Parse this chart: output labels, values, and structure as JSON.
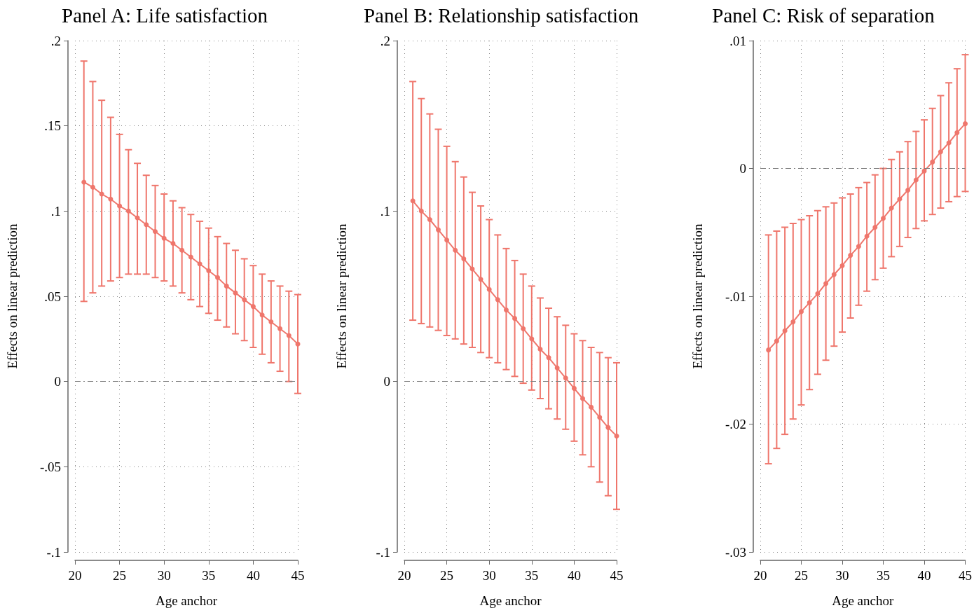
{
  "chart_data": [
    {
      "type": "line",
      "title": "Panel A: Life satisfaction",
      "xlabel": "Age anchor",
      "ylabel": "Effects on linear prediction",
      "x": [
        21,
        22,
        23,
        24,
        25,
        26,
        27,
        28,
        29,
        30,
        31,
        32,
        33,
        34,
        35,
        36,
        37,
        38,
        39,
        40,
        41,
        42,
        43,
        44,
        45
      ],
      "series": [
        {
          "color": "#ef766c",
          "values": [
            0.117,
            0.114,
            0.11,
            0.107,
            0.103,
            0.1,
            0.096,
            0.092,
            0.088,
            0.084,
            0.081,
            0.077,
            0.073,
            0.069,
            0.065,
            0.061,
            0.056,
            0.052,
            0.048,
            0.044,
            0.039,
            0.035,
            0.031,
            0.027,
            0.022
          ],
          "errors": [
            [
              0.047,
              0.188
            ],
            [
              0.052,
              0.176
            ],
            [
              0.056,
              0.165
            ],
            [
              0.059,
              0.155
            ],
            [
              0.061,
              0.145
            ],
            [
              0.063,
              0.136
            ],
            [
              0.063,
              0.128
            ],
            [
              0.063,
              0.121
            ],
            [
              0.061,
              0.115
            ],
            [
              0.059,
              0.11
            ],
            [
              0.056,
              0.106
            ],
            [
              0.052,
              0.102
            ],
            [
              0.048,
              0.098
            ],
            [
              0.044,
              0.094
            ],
            [
              0.04,
              0.09
            ],
            [
              0.036,
              0.085
            ],
            [
              0.032,
              0.081
            ],
            [
              0.028,
              0.077
            ],
            [
              0.024,
              0.072
            ],
            [
              0.02,
              0.068
            ],
            [
              0.016,
              0.063
            ],
            [
              0.011,
              0.059
            ],
            [
              0.006,
              0.056
            ],
            [
              0.0,
              0.053
            ],
            [
              -0.007,
              0.051
            ]
          ]
        }
      ],
      "xlim": [
        20,
        45
      ],
      "xticks": [
        20,
        25,
        30,
        35,
        40,
        45
      ],
      "ylim": [
        -0.1,
        0.2
      ],
      "yticks": [
        {
          "value": -0.1,
          "label": "-.1"
        },
        {
          "value": -0.05,
          "label": "-.05"
        },
        {
          "value": 0,
          "label": "0"
        },
        {
          "value": 0.05,
          "label": ".05"
        },
        {
          "value": 0.1,
          "label": ".1"
        },
        {
          "value": 0.15,
          "label": ".15"
        },
        {
          "value": 0.2,
          "label": ".2"
        }
      ],
      "ref_lines": [
        {
          "axis": "y",
          "value": 0,
          "color": "#808080",
          "line_style": "dashed"
        }
      ],
      "grid": true,
      "marker": "circle",
      "line_style": "solid"
    },
    {
      "type": "line",
      "title": "Panel B: Relationship satisfaction",
      "xlabel": "Age anchor",
      "ylabel": "Effects on linear prediction",
      "x": [
        21,
        22,
        23,
        24,
        25,
        26,
        27,
        28,
        29,
        30,
        31,
        32,
        33,
        34,
        35,
        36,
        37,
        38,
        39,
        40,
        41,
        42,
        43,
        44,
        45
      ],
      "series": [
        {
          "color": "#ef766c",
          "values": [
            0.106,
            0.1,
            0.095,
            0.089,
            0.083,
            0.077,
            0.072,
            0.066,
            0.06,
            0.054,
            0.048,
            0.042,
            0.037,
            0.031,
            0.025,
            0.019,
            0.014,
            0.008,
            0.002,
            -0.004,
            -0.01,
            -0.015,
            -0.021,
            -0.027,
            -0.032
          ],
          "errors": [
            [
              0.036,
              0.176
            ],
            [
              0.034,
              0.166
            ],
            [
              0.032,
              0.157
            ],
            [
              0.03,
              0.148
            ],
            [
              0.027,
              0.138
            ],
            [
              0.025,
              0.129
            ],
            [
              0.022,
              0.12
            ],
            [
              0.02,
              0.111
            ],
            [
              0.017,
              0.103
            ],
            [
              0.014,
              0.095
            ],
            [
              0.011,
              0.086
            ],
            [
              0.007,
              0.078
            ],
            [
              0.003,
              0.071
            ],
            [
              -0.001,
              0.063
            ],
            [
              -0.005,
              0.056
            ],
            [
              -0.01,
              0.049
            ],
            [
              -0.016,
              0.043
            ],
            [
              -0.022,
              0.038
            ],
            [
              -0.028,
              0.033
            ],
            [
              -0.035,
              0.028
            ],
            [
              -0.043,
              0.024
            ],
            [
              -0.05,
              0.02
            ],
            [
              -0.059,
              0.017
            ],
            [
              -0.067,
              0.014
            ],
            [
              -0.075,
              0.011
            ]
          ]
        }
      ],
      "xlim": [
        20,
        45
      ],
      "xticks": [
        20,
        25,
        30,
        35,
        40,
        45
      ],
      "ylim": [
        -0.1,
        0.2
      ],
      "yticks": [
        {
          "value": -0.1,
          "label": "-.1"
        },
        {
          "value": 0,
          "label": "0"
        },
        {
          "value": 0.1,
          "label": ".1"
        },
        {
          "value": 0.2,
          "label": ".2"
        }
      ],
      "ref_lines": [
        {
          "axis": "y",
          "value": 0,
          "color": "#808080",
          "line_style": "dashed"
        }
      ],
      "grid": true,
      "marker": "circle",
      "line_style": "solid"
    },
    {
      "type": "line",
      "title": "Panel C: Risk of separation",
      "xlabel": "Age anchor",
      "ylabel": "Effects on linear prediction",
      "x": [
        21,
        22,
        23,
        24,
        25,
        26,
        27,
        28,
        29,
        30,
        31,
        32,
        33,
        34,
        35,
        36,
        37,
        38,
        39,
        40,
        41,
        42,
        43,
        44,
        45
      ],
      "series": [
        {
          "color": "#ef766c",
          "values": [
            -0.0142,
            -0.0135,
            -0.0127,
            -0.012,
            -0.0112,
            -0.0105,
            -0.0098,
            -0.009,
            -0.0083,
            -0.0076,
            -0.0068,
            -0.0061,
            -0.0053,
            -0.0046,
            -0.0039,
            -0.0031,
            -0.0024,
            -0.0017,
            -0.0009,
            -0.0002,
            0.0005,
            0.0013,
            0.002,
            0.0028,
            0.0035
          ],
          "errors": [
            [
              -0.0231,
              -0.0052
            ],
            [
              -0.0219,
              -0.0049
            ],
            [
              -0.0208,
              -0.0046
            ],
            [
              -0.0196,
              -0.0043
            ],
            [
              -0.0185,
              -0.004
            ],
            [
              -0.0173,
              -0.0037
            ],
            [
              -0.0161,
              -0.0033
            ],
            [
              -0.015,
              -0.003
            ],
            [
              -0.0139,
              -0.0027
            ],
            [
              -0.0128,
              -0.0023
            ],
            [
              -0.0117,
              -0.002
            ],
            [
              -0.0107,
              -0.0015
            ],
            [
              -0.0096,
              -0.0011
            ],
            [
              -0.0087,
              -0.0005
            ],
            [
              -0.0078,
              0.0
            ],
            [
              -0.0069,
              0.0007
            ],
            [
              -0.0061,
              0.0013
            ],
            [
              -0.0054,
              0.0021
            ],
            [
              -0.0047,
              0.0029
            ],
            [
              -0.0041,
              0.0038
            ],
            [
              -0.0036,
              0.0047
            ],
            [
              -0.0031,
              0.0057
            ],
            [
              -0.0026,
              0.0067
            ],
            [
              -0.0022,
              0.0078
            ],
            [
              -0.0018,
              0.0089
            ]
          ]
        }
      ],
      "xlim": [
        20,
        45
      ],
      "xticks": [
        20,
        25,
        30,
        35,
        40,
        45
      ],
      "ylim": [
        -0.03,
        0.01
      ],
      "yticks": [
        {
          "value": -0.03,
          "label": "-.03"
        },
        {
          "value": -0.02,
          "label": "-.02"
        },
        {
          "value": -0.01,
          "label": "-.01"
        },
        {
          "value": 0,
          "label": "0"
        },
        {
          "value": 0.01,
          "label": ".01"
        }
      ],
      "ref_lines": [
        {
          "axis": "y",
          "value": 0,
          "color": "#808080",
          "line_style": "dashed"
        }
      ],
      "grid": true,
      "marker": "circle",
      "line_style": "solid"
    }
  ]
}
